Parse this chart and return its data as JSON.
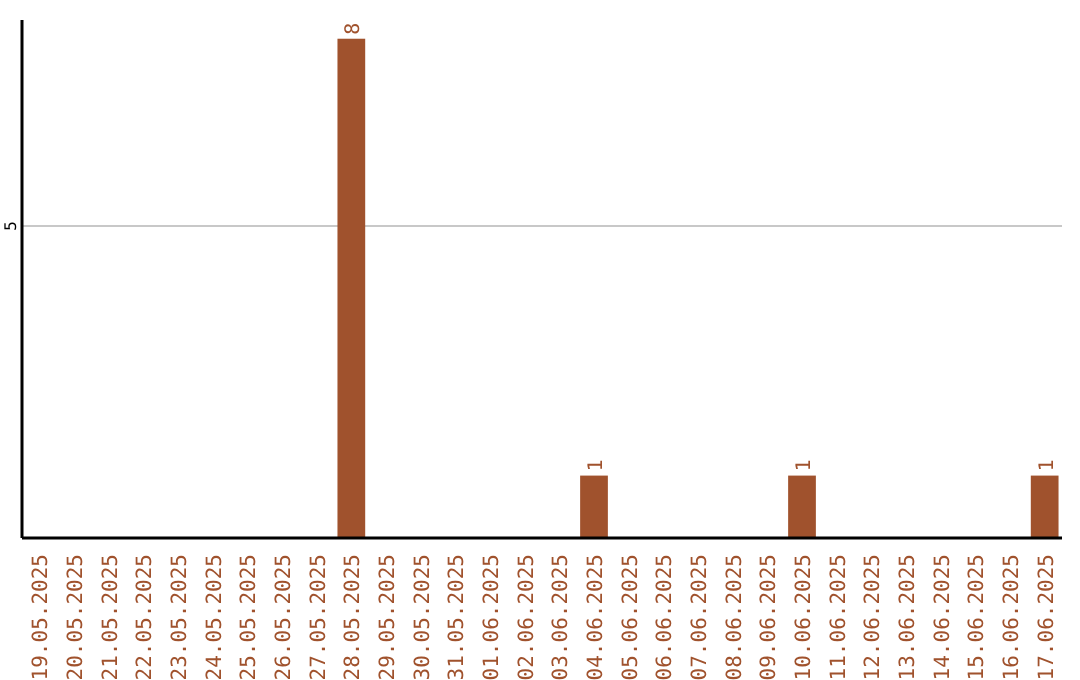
{
  "chart_data": {
    "type": "bar",
    "categories": [
      "19.05.2025",
      "20.05.2025",
      "21.05.2025",
      "22.05.2025",
      "23.05.2025",
      "24.05.2025",
      "25.05.2025",
      "26.05.2025",
      "27.05.2025",
      "28.05.2025",
      "29.05.2025",
      "30.05.2025",
      "31.05.2025",
      "01.06.2025",
      "02.06.2025",
      "03.06.2025",
      "04.06.2025",
      "05.06.2025",
      "06.06.2025",
      "07.06.2025",
      "08.06.2025",
      "09.06.2025",
      "10.06.2025",
      "11.06.2025",
      "12.06.2025",
      "13.06.2025",
      "14.06.2025",
      "15.06.2025",
      "16.06.2025",
      "17.06.2025"
    ],
    "values": [
      0,
      0,
      0,
      0,
      0,
      0,
      0,
      0,
      0,
      8,
      0,
      0,
      0,
      0,
      0,
      0,
      1,
      0,
      0,
      0,
      0,
      0,
      1,
      0,
      0,
      0,
      0,
      0,
      0,
      1
    ],
    "value_labels": [
      null,
      null,
      null,
      null,
      null,
      null,
      null,
      null,
      null,
      "8",
      null,
      null,
      null,
      null,
      null,
      null,
      "1",
      null,
      null,
      null,
      null,
      null,
      "1",
      null,
      null,
      null,
      null,
      null,
      null,
      "1"
    ],
    "color": "#a0522d",
    "ylim": [
      0,
      8.3
    ],
    "yticks": [
      5
    ],
    "grid": "y"
  }
}
